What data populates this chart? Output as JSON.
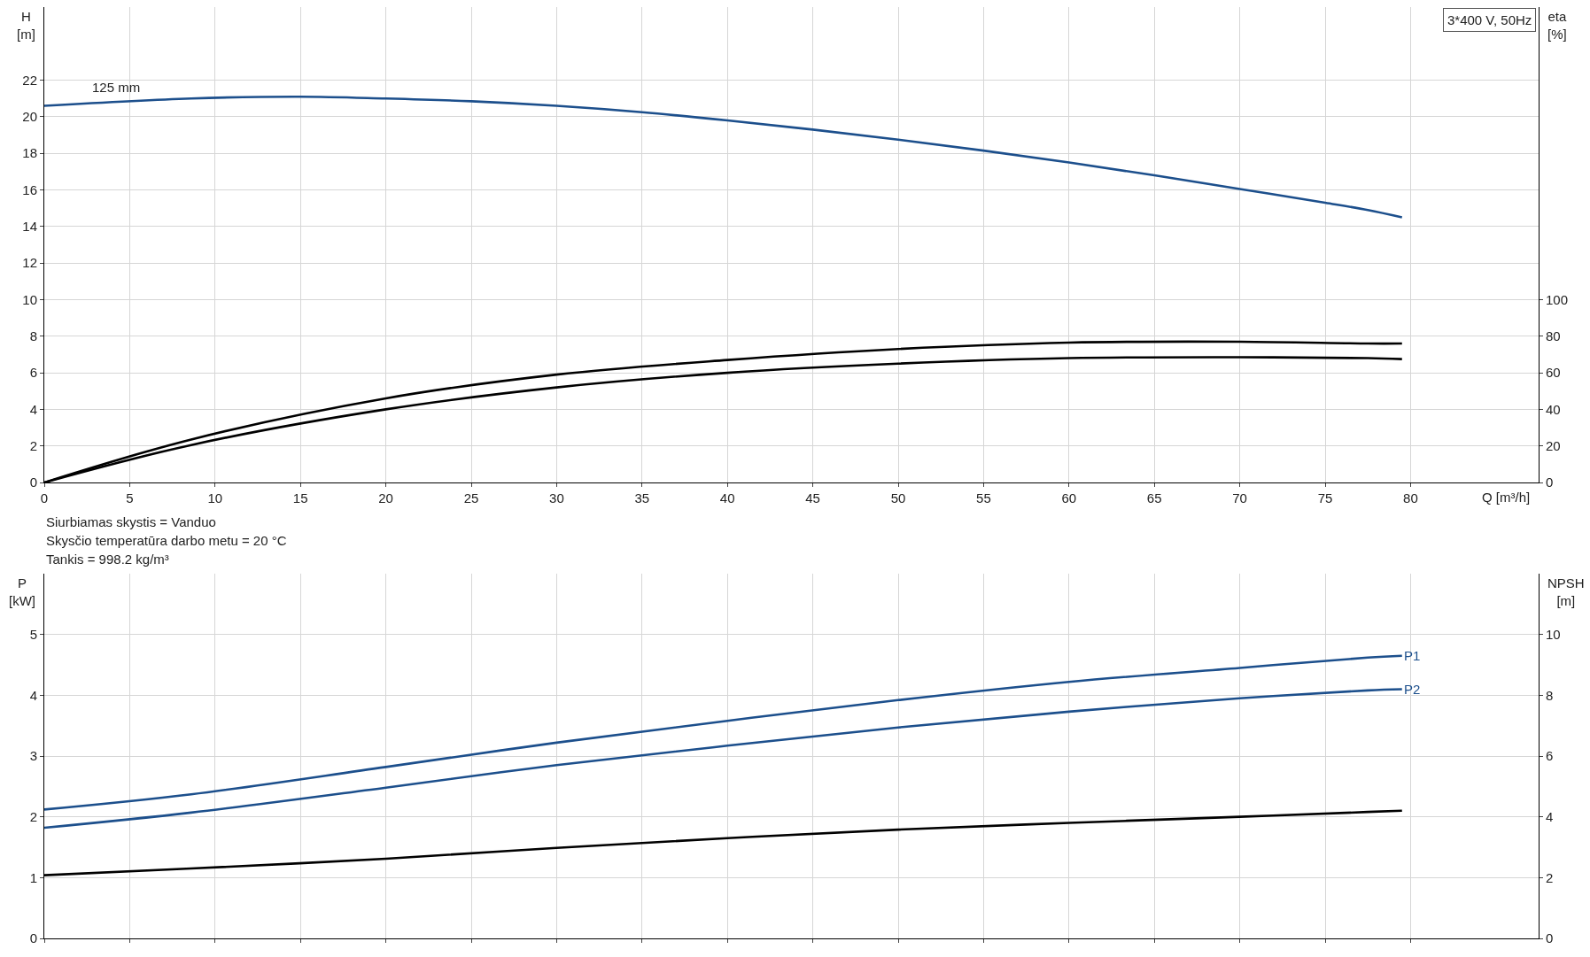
{
  "chart_data": [
    {
      "type": "line",
      "title": "3*400 V, 50Hz",
      "xlabel": "Q [m³/h]",
      "ylabel": "H [m]",
      "y2label": "eta [%]",
      "xlim": [
        0,
        87.5
      ],
      "xticks": [
        0,
        5,
        10,
        15,
        20,
        25,
        30,
        35,
        40,
        45,
        50,
        55,
        60,
        65,
        70,
        75,
        80
      ],
      "ylim": [
        0,
        26
      ],
      "yticks": [
        0,
        2,
        4,
        6,
        8,
        10,
        12,
        14,
        16,
        18,
        20,
        22
      ],
      "y2lim": [
        0,
        260
      ],
      "y2ticks": [
        0,
        20,
        40,
        60,
        80,
        100
      ],
      "grid": true,
      "legend": false,
      "line_style": "solid",
      "annotations": [
        {
          "text": "125 mm",
          "x": 4.2,
          "y": 21.1
        },
        "Siurbiamas skystis = Vanduo",
        "Skysčio temperatūra darbo metu = 20 °C",
        "Tankis = 998.2 kg/m³"
      ],
      "series": [
        {
          "color": "#1c4f8c",
          "x": [
            0,
            8.6,
            15,
            20,
            25,
            30,
            35,
            40,
            45,
            50,
            55,
            60,
            65,
            70,
            75,
            77.5,
            79.5
          ],
          "values": [
            20.6,
            21.0,
            21.1,
            21.0,
            20.85,
            20.6,
            20.25,
            19.8,
            19.3,
            18.75,
            18.15,
            17.5,
            16.8,
            16.05,
            15.3,
            14.9,
            14.5
          ]
        },
        {
          "color": "#000000",
          "axis": "y2",
          "x": [
            0,
            8.6,
            20,
            30,
            40,
            50,
            60,
            70,
            77.5,
            79.5
          ],
          "values": [
            0,
            23.5,
            46,
            59,
            67,
            73,
            76.5,
            77,
            76,
            76
          ]
        },
        {
          "color": "#000000",
          "axis": "y2",
          "x": [
            0,
            8.6,
            20,
            30,
            40,
            50,
            60,
            70,
            77.5,
            79.5
          ],
          "values": [
            0,
            20.5,
            40,
            52,
            60,
            65,
            68,
            68.5,
            68,
            67.5
          ]
        }
      ]
    },
    {
      "type": "line",
      "ylabel": "P [kW]",
      "y2label": "NPSH [m]",
      "tick_labels": "y",
      "xlim": [
        0,
        87.5
      ],
      "xticks": [
        0,
        5,
        10,
        15,
        20,
        25,
        30,
        35,
        40,
        45,
        50,
        55,
        60,
        65,
        70,
        75,
        80
      ],
      "ylim": [
        0,
        6
      ],
      "yticks": [
        0,
        1,
        2,
        3,
        4,
        5
      ],
      "y2lim": [
        0,
        12
      ],
      "y2ticks": [
        0,
        2,
        4,
        6,
        8,
        10
      ],
      "grid": true,
      "legend": false,
      "line_style": "solid",
      "series": [
        {
          "name": "P1",
          "color": "#1c4f8c",
          "x": [
            0,
            8.6,
            20,
            30,
            40,
            50,
            60,
            70,
            77.5,
            79.5
          ],
          "values": [
            2.12,
            2.37,
            2.82,
            3.22,
            3.58,
            3.92,
            4.22,
            4.45,
            4.62,
            4.65
          ]
        },
        {
          "name": "P2",
          "color": "#1c4f8c",
          "x": [
            0,
            8.6,
            20,
            30,
            40,
            50,
            60,
            70,
            77.5,
            79.5
          ],
          "values": [
            1.82,
            2.07,
            2.48,
            2.85,
            3.17,
            3.47,
            3.73,
            3.95,
            4.08,
            4.1
          ]
        },
        {
          "color": "#000000",
          "axis": "y2",
          "x": [
            0,
            8.6,
            20,
            30,
            40,
            50,
            60,
            70,
            77.5,
            79.5
          ],
          "values": [
            2.08,
            2.3,
            2.62,
            2.98,
            3.3,
            3.58,
            3.8,
            4.0,
            4.16,
            4.2
          ]
        }
      ]
    }
  ]
}
